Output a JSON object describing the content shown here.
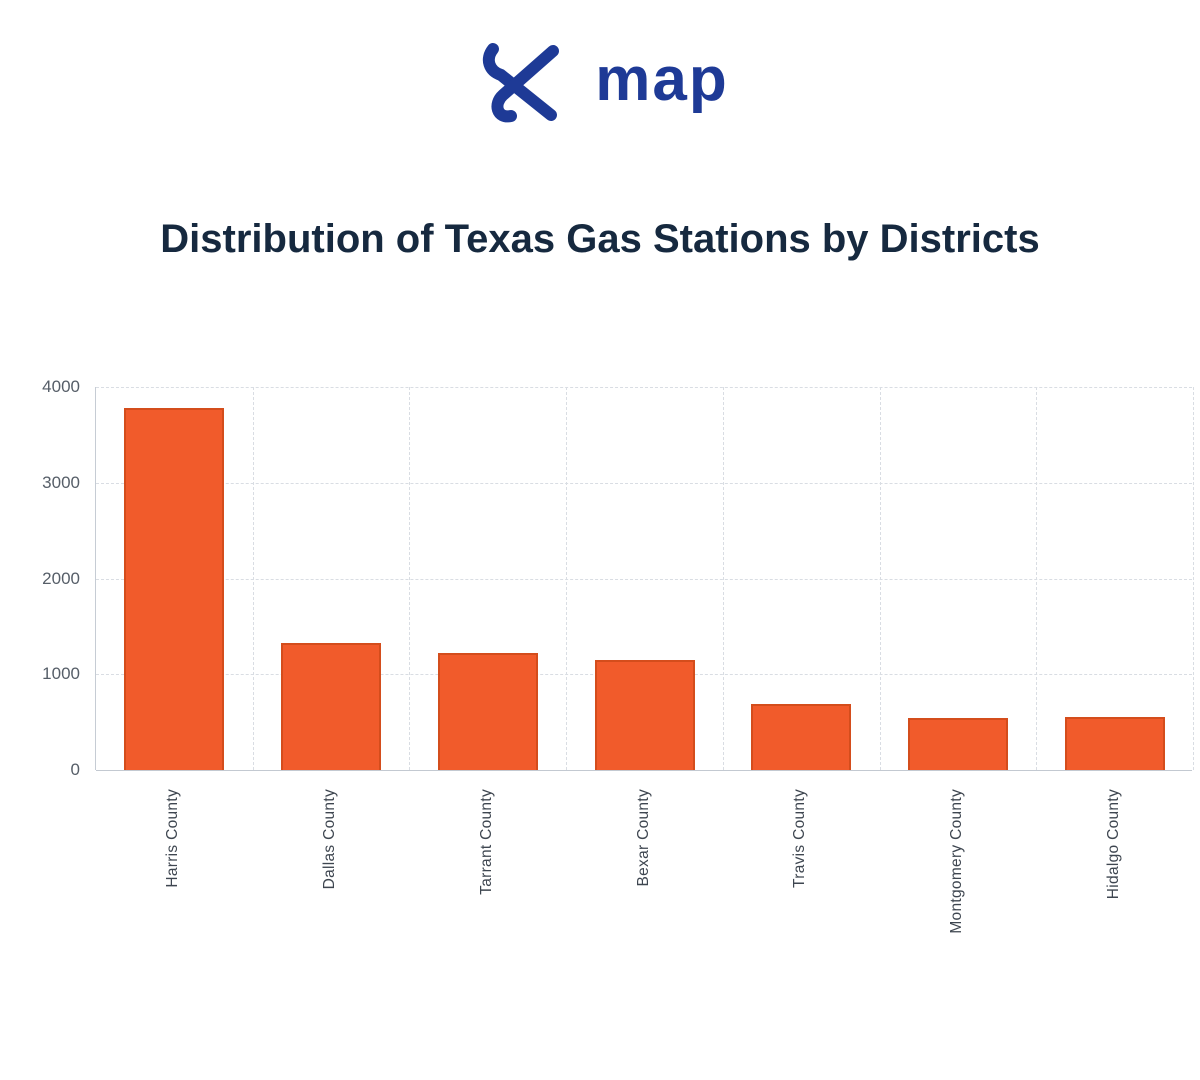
{
  "logo": {
    "brand_text": "map",
    "icon": "xmap-x-icon",
    "brand_color": "#1e3a96"
  },
  "title": "Distribution of Texas Gas Stations by Districts",
  "chart_data": {
    "type": "bar",
    "title": "Distribution of Texas Gas Stations by Districts",
    "categories": [
      "Harris County",
      "Dallas County",
      "Tarrant County",
      "Bexar County",
      "Travis County",
      "Montgomery County",
      "Hidalgo County"
    ],
    "values": [
      3780,
      1330,
      1220,
      1150,
      690,
      540,
      550
    ],
    "xlabel": "",
    "ylabel": "",
    "ylim": [
      0,
      4000
    ],
    "yticks": [
      0,
      1000,
      2000,
      3000,
      4000
    ],
    "bar_color": "#f15b2b",
    "bar_border_color": "#d44d1c",
    "grid": "dashed",
    "legend": "none",
    "x_tick_rotation": 90
  }
}
